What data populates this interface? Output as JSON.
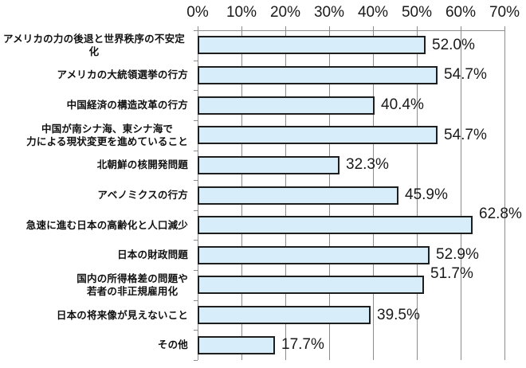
{
  "chart_data": {
    "type": "bar",
    "orientation": "horizontal",
    "categories": [
      "アメリカの力の後退と世界秩序の不安定化",
      "アメリカの大統領選挙の行方",
      "中国経済の構造改革の行方",
      "中国が南シナ海、東シナ海で\n力による現状変更を進めていること",
      "北朝鮮の核開発問題",
      "アベノミクスの行方",
      "急速に進む日本の高齢化と人口減少",
      "日本の財政問題",
      "国内の所得格差の問題や\n若者の非正規雇用化",
      "日本の将来像が見えないこと",
      "その他"
    ],
    "values": [
      52.0,
      54.7,
      40.4,
      54.7,
      32.3,
      45.9,
      62.8,
      52.9,
      51.7,
      39.5,
      17.7
    ],
    "value_labels": [
      "52.0%",
      "54.7%",
      "40.4%",
      "54.7%",
      "32.3%",
      "45.9%",
      "62.8%",
      "52.9%",
      "51.7%",
      "39.5%",
      "17.7%"
    ],
    "x_axis": {
      "position": "top",
      "min": 0,
      "max": 70,
      "tick_step": 10,
      "tick_labels": [
        "0%",
        "10%",
        "20%",
        "30%",
        "40%",
        "50%",
        "60%",
        "70%"
      ]
    },
    "grid": true,
    "legend": false,
    "value_label_y_offsets": [
      0,
      0,
      0,
      0,
      0,
      0,
      -14,
      0,
      -14,
      0,
      0
    ],
    "styles": {
      "bar_fill": "#D7EDFA",
      "bar_border": "#1E1E1E",
      "grid_color": "#8C8C8C",
      "text_color": "#1a1a1a"
    }
  }
}
